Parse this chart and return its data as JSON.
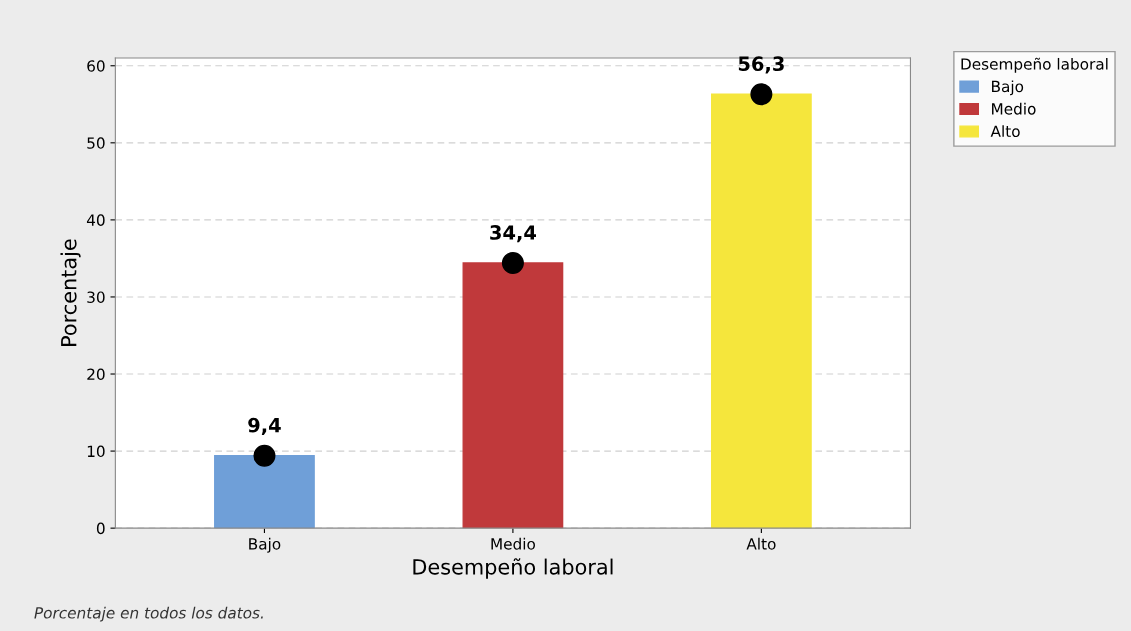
{
  "chart_data": {
    "type": "bar",
    "xlabel": "Desempeño laboral",
    "ylabel": "Porcentaje",
    "categories": [
      "Bajo",
      "Medio",
      "Alto"
    ],
    "series": [
      {
        "name": "Bajo",
        "color": "#6f9fd8",
        "values": [
          9.4,
          null,
          null
        ],
        "value_labels": [
          "9,4",
          null,
          null
        ]
      },
      {
        "name": "Medio",
        "color": "#c0393b",
        "values": [
          null,
          34.4,
          null
        ],
        "value_labels": [
          null,
          "34,4",
          null
        ]
      },
      {
        "name": "Alto",
        "color": "#f5e63c",
        "values": [
          null,
          null,
          56.3
        ],
        "value_labels": [
          null,
          null,
          "56,3"
        ]
      },
      {
        "type": "scatter",
        "x": [
          "Bajo",
          "Medio",
          "Alto"
        ],
        "color": "#000000",
        "marker": "circle",
        "values": [
          9.4,
          34.4,
          56.3
        ]
      }
    ],
    "ylim": [
      0,
      61
    ],
    "yticks": [
      0,
      10,
      20,
      30,
      40,
      50,
      60
    ],
    "grid": "y",
    "legend": "top right",
    "legend_title": "Desempeño laboral",
    "annotations": [
      "Porcentaje en todos los datos."
    ]
  }
}
